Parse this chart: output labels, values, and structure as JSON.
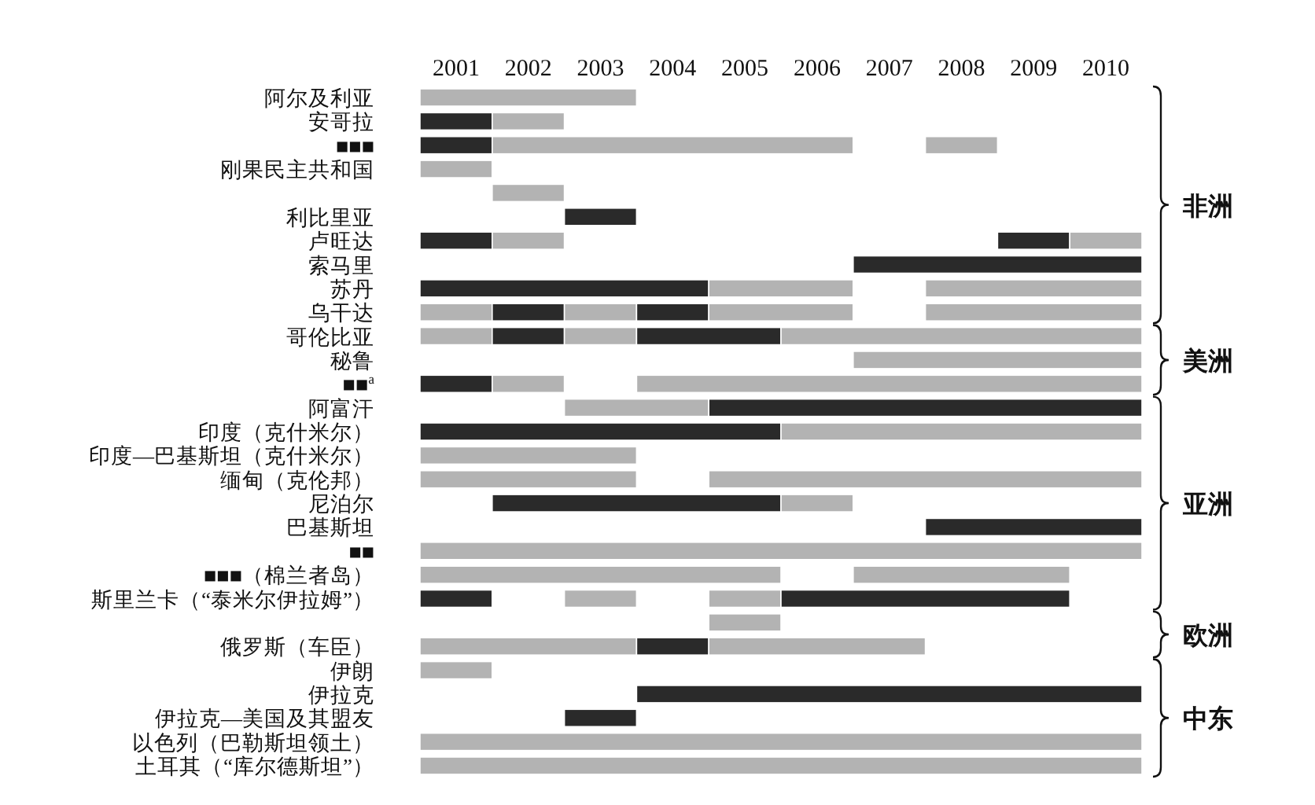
{
  "chart_data": {
    "type": "bar",
    "orientation": "horizontal",
    "categories": [
      "阿尔及利亚",
      "安哥拉",
      "■■■",
      "刚果民主共和国",
      null,
      "利比里亚",
      "卢旺达",
      "索马里",
      "苏丹",
      "乌干达",
      "哥伦比亚",
      "秘鲁",
      "■■$^{a}$",
      "阿富汗",
      "印度（克什米尔）",
      "印度—巴基斯坦（克什米尔）",
      "缅甸（克伦邦）",
      "尼泊尔",
      "巴基斯坦",
      "■■",
      "■■■（棉兰者岛）",
      "斯里兰卡（“泰米尔伊拉姆”）",
      null,
      "俄罗斯（车臣）",
      "伊朗",
      "伊拉克",
      "伊拉克—美国及其盟友",
      "以色列（巴勒斯坦领土）",
      "土耳其（“库尔德斯坦”）"
    ],
    "xlim": [
      2000.5,
      2010.5
    ],
    "xticks": [
      2001,
      2002,
      2003,
      2004,
      2005,
      2006,
      2007,
      2008,
      2009,
      2010
    ],
    "series": [
      {
        "base": [
          2000.5,
          2000.5,
          2000.5,
          2000.5,
          2001.5,
          2002.5,
          2000.5,
          2006.5,
          2000.5,
          2000.5,
          2000.5,
          2006.5,
          2000.5,
          2002.5,
          2000.5,
          2000.5,
          2000.5,
          2001.5,
          2007.5,
          2000.5,
          2000.5,
          2000.5,
          2004.5,
          2000.5,
          2000.5,
          2003.5,
          2002.5,
          2000.5,
          2000.5
        ],
        "values": [
          3,
          1,
          1,
          1,
          1,
          1,
          1,
          4,
          4,
          1,
          1,
          4,
          1,
          2,
          5,
          3,
          3,
          4,
          3,
          10,
          5,
          1,
          1,
          3,
          1,
          7,
          1,
          10,
          10
        ],
        "colors": [
          "#b3b3b3",
          "#2a2a2a",
          "#2a2a2a",
          "#b3b3b3",
          "#b3b3b3",
          "#2a2a2a",
          "#2a2a2a",
          "#2a2a2a",
          "#2a2a2a",
          "#b3b3b3",
          "#b3b3b3",
          "#b3b3b3",
          "#2a2a2a",
          "#b3b3b3",
          "#2a2a2a",
          "#b3b3b3",
          "#b3b3b3",
          "#2a2a2a",
          "#2a2a2a",
          "#b3b3b3",
          "#b3b3b3",
          "#2a2a2a",
          "#b3b3b3",
          "#b3b3b3",
          "#b3b3b3",
          "#2a2a2a",
          "#2a2a2a",
          "#b3b3b3",
          "#b3b3b3"
        ]
      },
      {
        "base": [
          null,
          2001.5,
          2001.5,
          null,
          null,
          null,
          2001.5,
          null,
          2004.5,
          2001.5,
          2001.5,
          null,
          2001.5,
          2004.5,
          2005.5,
          null,
          2004.5,
          2005.5,
          null,
          null,
          2006.5,
          2002.5,
          null,
          2003.5,
          null,
          null,
          null,
          null,
          null
        ],
        "values": [
          null,
          1,
          5,
          null,
          null,
          null,
          1,
          null,
          2,
          1,
          1,
          null,
          1,
          6,
          5,
          null,
          6,
          1,
          null,
          null,
          3,
          1,
          null,
          1,
          null,
          null,
          null,
          null,
          null
        ],
        "colors": [
          null,
          "#b3b3b3",
          "#b3b3b3",
          null,
          null,
          null,
          "#b3b3b3",
          null,
          "#b3b3b3",
          "#2a2a2a",
          "#2a2a2a",
          null,
          "#b3b3b3",
          "#2a2a2a",
          "#b3b3b3",
          null,
          "#b3b3b3",
          "#b3b3b3",
          null,
          null,
          "#b3b3b3",
          "#b3b3b3",
          null,
          "#2a2a2a",
          null,
          null,
          null,
          null,
          null
        ]
      },
      {
        "base": [
          null,
          null,
          2007.5,
          null,
          null,
          null,
          2008.5,
          null,
          2007.5,
          2002.5,
          2002.5,
          null,
          2003.5,
          null,
          null,
          null,
          null,
          null,
          null,
          null,
          null,
          2004.5,
          null,
          2004.5,
          null,
          null,
          null,
          null,
          null
        ],
        "values": [
          null,
          null,
          1,
          null,
          null,
          null,
          1,
          null,
          3,
          1,
          1,
          null,
          7,
          null,
          null,
          null,
          null,
          null,
          null,
          null,
          null,
          1,
          null,
          3,
          null,
          null,
          null,
          null,
          null
        ],
        "colors": [
          null,
          null,
          "#b3b3b3",
          null,
          null,
          null,
          "#2a2a2a",
          null,
          "#b3b3b3",
          "#b3b3b3",
          "#b3b3b3",
          null,
          "#b3b3b3",
          null,
          null,
          null,
          null,
          null,
          null,
          null,
          null,
          "#b3b3b3",
          null,
          "#b3b3b3",
          null,
          null,
          null,
          null,
          null
        ]
      },
      {
        "base": [
          null,
          null,
          null,
          null,
          null,
          null,
          2009.5,
          null,
          null,
          2003.5,
          2003.5,
          null,
          null,
          null,
          null,
          null,
          null,
          null,
          null,
          null,
          null,
          2005.5,
          null,
          null,
          null,
          null,
          null,
          null,
          null
        ],
        "values": [
          null,
          null,
          null,
          null,
          null,
          null,
          1,
          null,
          null,
          1,
          2,
          null,
          null,
          null,
          null,
          null,
          null,
          null,
          null,
          null,
          null,
          4,
          null,
          null,
          null,
          null,
          null,
          null,
          null
        ],
        "colors": [
          null,
          null,
          null,
          null,
          null,
          null,
          "#b3b3b3",
          null,
          null,
          "#2a2a2a",
          "#2a2a2a",
          null,
          null,
          null,
          null,
          null,
          null,
          null,
          null,
          null,
          null,
          "#2a2a2a",
          null,
          null,
          null,
          null,
          null,
          null,
          null
        ]
      },
      {
        "base": [
          null,
          null,
          null,
          null,
          null,
          null,
          null,
          null,
          null,
          2004.5,
          2005.5,
          null,
          null,
          null,
          null,
          null,
          null,
          null,
          null,
          null,
          null,
          null,
          null,
          null,
          null,
          null,
          null,
          null,
          null
        ],
        "values": [
          null,
          null,
          null,
          null,
          null,
          null,
          null,
          null,
          null,
          2,
          5,
          null,
          null,
          null,
          null,
          null,
          null,
          null,
          null,
          null,
          null,
          null,
          null,
          null,
          null,
          null,
          null,
          null,
          null
        ],
        "colors": [
          null,
          null,
          null,
          null,
          null,
          null,
          null,
          null,
          null,
          "#b3b3b3",
          "#b3b3b3",
          null,
          null,
          null,
          null,
          null,
          null,
          null,
          null,
          null,
          null,
          null,
          null,
          null,
          null,
          null,
          null,
          null,
          null
        ]
      },
      {
        "base": [
          null,
          null,
          null,
          null,
          null,
          null,
          null,
          null,
          null,
          2007.5,
          null,
          null,
          null,
          null,
          null,
          null,
          null,
          null,
          null,
          null,
          null,
          null,
          null,
          null,
          null,
          null,
          null,
          null,
          null
        ],
        "values": [
          null,
          null,
          null,
          null,
          null,
          null,
          null,
          null,
          null,
          3,
          null,
          null,
          null,
          null,
          null,
          null,
          null,
          null,
          null,
          null,
          null,
          null,
          null,
          null,
          null,
          null,
          null,
          null,
          null
        ],
        "colors": [
          null,
          null,
          null,
          null,
          null,
          null,
          null,
          null,
          null,
          "#b3b3b3",
          null,
          null,
          null,
          null,
          null,
          null,
          null,
          null,
          null,
          null,
          null,
          null,
          null,
          null,
          null,
          null,
          null,
          null,
          null
        ]
      }
    ],
    "annotations": [
      "非洲",
      "美洲",
      "亚洲",
      "欧洲",
      "中东"
    ],
    "grid": false
  }
}
